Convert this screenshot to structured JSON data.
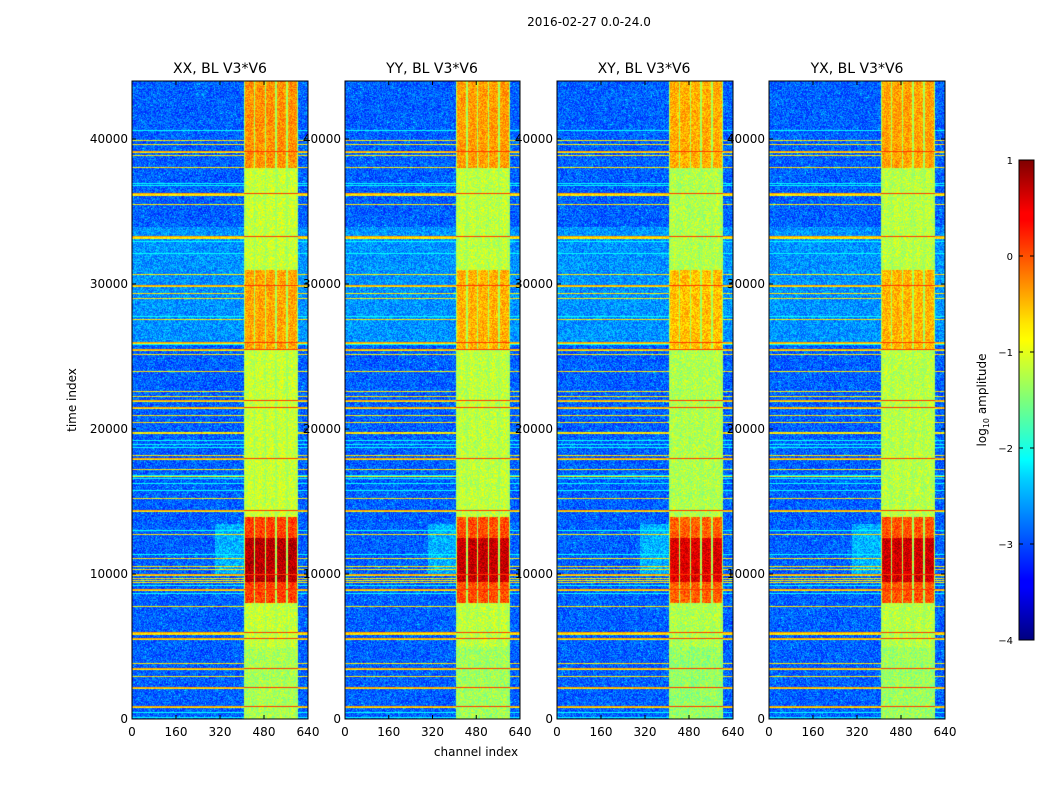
{
  "chart_data": {
    "type": "heatmap",
    "suptitle": "2016-02-27 0.0-24.0",
    "xlabel": "channel index",
    "ylabel": "time index",
    "xlim": [
      0,
      640
    ],
    "ylim": [
      0,
      44000
    ],
    "xticks": [
      0,
      160,
      320,
      480,
      640
    ],
    "yticks": [
      0,
      10000,
      20000,
      30000,
      40000
    ],
    "xtick_labels": [
      "0",
      "160",
      "320",
      "480",
      "640"
    ],
    "ytick_labels": [
      "0",
      "10000",
      "20000",
      "30000",
      "40000"
    ],
    "panels": [
      {
        "title": "XX, BL V3*V6",
        "polarization": "XX",
        "band_start": 405,
        "band_end": 600,
        "strength": 1.0
      },
      {
        "title": "YY, BL V3*V6",
        "polarization": "YY",
        "band_start": 405,
        "band_end": 600,
        "strength": 0.9
      },
      {
        "title": "XY, BL V3*V6",
        "polarization": "XY",
        "band_start": 405,
        "band_end": 600,
        "strength": 0.75
      },
      {
        "title": "YX, BL V3*V6",
        "polarization": "YX",
        "band_start": 405,
        "band_end": 600,
        "strength": 0.85
      }
    ],
    "colorbar": {
      "label_prefix": "log",
      "label_base": "10",
      "label_suffix": " amplitude",
      "vmin": -4,
      "vmax": 1,
      "ticks": [
        1,
        0,
        -1,
        -2,
        -3,
        -4
      ],
      "tick_labels": [
        "1",
        "0",
        "−1",
        "−2",
        "−3",
        "−4"
      ],
      "colormap": "jet"
    }
  }
}
